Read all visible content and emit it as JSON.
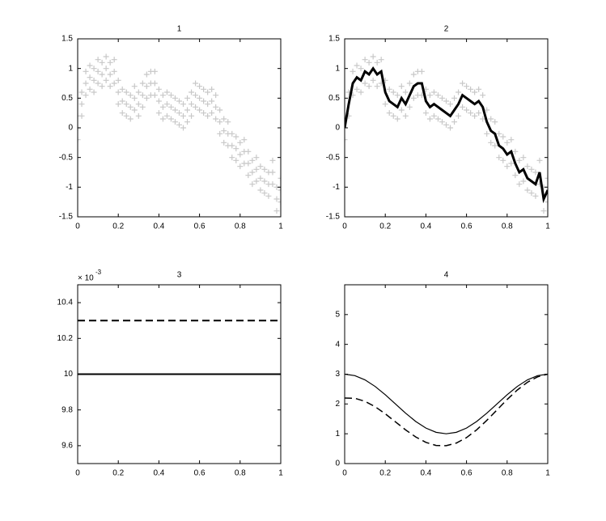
{
  "chart_data": [
    {
      "type": "scatter",
      "title": "1",
      "x": [
        0,
        0.02,
        0.04,
        0.06,
        0.08,
        0.1,
        0.12,
        0.14,
        0.16,
        0.18,
        0.2,
        0.22,
        0.24,
        0.26,
        0.28,
        0.3,
        0.32,
        0.34,
        0.36,
        0.38,
        0.4,
        0.42,
        0.44,
        0.46,
        0.48,
        0.5,
        0.52,
        0.54,
        0.56,
        0.58,
        0.6,
        0.62,
        0.64,
        0.66,
        0.68,
        0.7,
        0.72,
        0.74,
        0.76,
        0.78,
        0.8,
        0.82,
        0.84,
        0.86,
        0.88,
        0.9,
        0.92,
        0.94,
        0.96,
        0.98,
        1
      ],
      "series": [
        {
          "color": "#c8c8c8",
          "mode": "markers",
          "values": [
            0.2,
            0.6,
            0.95,
            1.05,
            1,
            1.15,
            1.1,
            1.2,
            1.1,
            1.15,
            0.8,
            0.65,
            0.6,
            0.55,
            0.7,
            0.6,
            0.75,
            0.9,
            0.95,
            0.95,
            0.65,
            0.55,
            0.6,
            0.55,
            0.5,
            0.45,
            0.4,
            0.5,
            0.6,
            0.75,
            0.7,
            0.65,
            0.6,
            0.65,
            0.55,
            0.3,
            0.15,
            0.1,
            -0.1,
            -0.15,
            -0.25,
            -0.2,
            -0.4,
            -0.55,
            -0.5,
            -0.65,
            -0.7,
            -0.75,
            -0.55,
            -1,
            -0.85
          ]
        },
        {
          "color": "#c8c8c8",
          "mode": "markers",
          "values": [
            0,
            0.4,
            0.75,
            0.85,
            0.8,
            0.95,
            0.9,
            1.0,
            0.9,
            0.95,
            0.6,
            0.45,
            0.4,
            0.35,
            0.5,
            0.4,
            0.55,
            0.7,
            0.75,
            0.75,
            0.45,
            0.35,
            0.4,
            0.35,
            0.3,
            0.25,
            0.2,
            0.3,
            0.4,
            0.55,
            0.5,
            0.45,
            0.4,
            0.45,
            0.35,
            0.1,
            -0.05,
            -0.1,
            -0.3,
            -0.35,
            -0.45,
            -0.4,
            -0.6,
            -0.75,
            -0.7,
            -0.85,
            -0.9,
            -0.95,
            -0.75,
            -1.2,
            -1.05
          ]
        },
        {
          "color": "#c8c8c8",
          "mode": "markers",
          "values": [
            -0.2,
            0.2,
            0.55,
            0.65,
            0.6,
            0.75,
            0.7,
            0.8,
            0.7,
            0.75,
            0.4,
            0.25,
            0.2,
            0.15,
            0.3,
            0.2,
            0.35,
            0.5,
            0.55,
            0.55,
            0.25,
            0.15,
            0.2,
            0.15,
            0.1,
            0.05,
            0,
            0.1,
            0.2,
            0.35,
            0.3,
            0.25,
            0.2,
            0.25,
            0.15,
            -0.1,
            -0.25,
            -0.3,
            -0.5,
            -0.55,
            -0.65,
            -0.6,
            -0.8,
            -0.95,
            -0.9,
            -1.05,
            -1.1,
            -1.15,
            -0.95,
            -1.4,
            -1.25
          ]
        }
      ],
      "xlim": [
        0,
        1
      ],
      "xticks": [
        0,
        0.2,
        0.4,
        0.6,
        0.8,
        1
      ],
      "ylim": [
        -1.5,
        1.5
      ],
      "yticks": [
        -1.5,
        -1,
        -0.5,
        0,
        0.5,
        1,
        1.5
      ]
    },
    {
      "type": "scatter",
      "title": "2",
      "x": [
        0,
        0.02,
        0.04,
        0.06,
        0.08,
        0.1,
        0.12,
        0.14,
        0.16,
        0.18,
        0.2,
        0.22,
        0.24,
        0.26,
        0.28,
        0.3,
        0.32,
        0.34,
        0.36,
        0.38,
        0.4,
        0.42,
        0.44,
        0.46,
        0.48,
        0.5,
        0.52,
        0.54,
        0.56,
        0.58,
        0.6,
        0.62,
        0.64,
        0.66,
        0.68,
        0.7,
        0.72,
        0.74,
        0.76,
        0.78,
        0.8,
        0.82,
        0.84,
        0.86,
        0.88,
        0.9,
        0.92,
        0.94,
        0.96,
        0.98,
        1
      ],
      "series": [
        {
          "color": "#c8c8c8",
          "mode": "markers",
          "values": [
            0.2,
            0.6,
            0.95,
            1.05,
            1,
            1.15,
            1.1,
            1.2,
            1.1,
            1.15,
            0.8,
            0.65,
            0.6,
            0.55,
            0.7,
            0.6,
            0.75,
            0.9,
            0.95,
            0.95,
            0.65,
            0.55,
            0.6,
            0.55,
            0.5,
            0.45,
            0.4,
            0.5,
            0.6,
            0.75,
            0.7,
            0.65,
            0.6,
            0.65,
            0.55,
            0.3,
            0.15,
            0.1,
            -0.1,
            -0.15,
            -0.25,
            -0.2,
            -0.4,
            -0.55,
            -0.5,
            -0.65,
            -0.7,
            -0.75,
            -0.55,
            -1,
            -0.85
          ]
        },
        {
          "color": "#c8c8c8",
          "mode": "markers",
          "values": [
            -0.2,
            0.2,
            0.55,
            0.65,
            0.6,
            0.75,
            0.7,
            0.8,
            0.7,
            0.75,
            0.4,
            0.25,
            0.2,
            0.15,
            0.3,
            0.2,
            0.35,
            0.5,
            0.55,
            0.55,
            0.25,
            0.15,
            0.2,
            0.15,
            0.1,
            0.05,
            0,
            0.1,
            0.2,
            0.35,
            0.3,
            0.25,
            0.2,
            0.25,
            0.15,
            -0.1,
            -0.25,
            -0.3,
            -0.5,
            -0.55,
            -0.65,
            -0.6,
            -0.8,
            -0.95,
            -0.9,
            -1.05,
            -1.1,
            -1.15,
            -0.95,
            -1.4,
            -1.25
          ]
        },
        {
          "color": "#000000",
          "mode": "line",
          "dash": false,
          "line_width": 3,
          "values": [
            0,
            0.4,
            0.75,
            0.85,
            0.8,
            0.95,
            0.9,
            1.0,
            0.9,
            0.95,
            0.6,
            0.45,
            0.4,
            0.35,
            0.5,
            0.4,
            0.55,
            0.7,
            0.75,
            0.75,
            0.45,
            0.35,
            0.4,
            0.35,
            0.3,
            0.25,
            0.2,
            0.3,
            0.4,
            0.55,
            0.5,
            0.45,
            0.4,
            0.45,
            0.35,
            0.1,
            -0.05,
            -0.1,
            -0.3,
            -0.35,
            -0.45,
            -0.4,
            -0.6,
            -0.75,
            -0.7,
            -0.85,
            -0.9,
            -0.95,
            -0.75,
            -1.2,
            -1.05
          ]
        }
      ],
      "xlim": [
        0,
        1
      ],
      "xticks": [
        0,
        0.2,
        0.4,
        0.6,
        0.8,
        1
      ],
      "ylim": [
        -1.5,
        1.5
      ],
      "yticks": [
        -1.5,
        -1,
        -0.5,
        0,
        0.5,
        1,
        1.5
      ]
    },
    {
      "type": "line",
      "title": "3",
      "y_exponent": {
        "base": "× 10",
        "power": "-3"
      },
      "x": [
        0,
        1
      ],
      "series": [
        {
          "color": "#000000",
          "mode": "line",
          "dash": true,
          "line_width": 2,
          "values": [
            0.0103,
            0.0103
          ]
        },
        {
          "color": "#000000",
          "mode": "line",
          "dash": false,
          "line_width": 2,
          "values": [
            0.01,
            0.01
          ]
        }
      ],
      "xlim": [
        0,
        1
      ],
      "xticks": [
        0,
        0.2,
        0.4,
        0.6,
        0.8,
        1
      ],
      "ylim": [
        0.0095,
        0.0105
      ],
      "yticks": [
        {
          "value": 0.0096,
          "label": "9.6"
        },
        {
          "value": 0.0098,
          "label": "9.8"
        },
        {
          "value": 0.01,
          "label": "10"
        },
        {
          "value": 0.0102,
          "label": "10.2"
        },
        {
          "value": 0.0104,
          "label": "10.4"
        }
      ]
    },
    {
      "type": "line",
      "title": "4",
      "x": [
        0,
        0.05,
        0.1,
        0.15,
        0.2,
        0.25,
        0.3,
        0.35,
        0.4,
        0.45,
        0.5,
        0.55,
        0.6,
        0.65,
        0.7,
        0.75,
        0.8,
        0.85,
        0.9,
        0.95,
        1
      ],
      "series": [
        {
          "color": "#000000",
          "mode": "line",
          "dash": false,
          "line_width": 1.2,
          "values": [
            3,
            2.951,
            2.809,
            2.588,
            2.309,
            2,
            1.691,
            1.412,
            1.191,
            1.049,
            1,
            1.049,
            1.191,
            1.412,
            1.691,
            2,
            2.309,
            2.588,
            2.809,
            2.951,
            3
          ]
        },
        {
          "color": "#000000",
          "mode": "line",
          "dash": true,
          "line_width": 1.5,
          "values": [
            2.2,
            2.191,
            2.089,
            1.908,
            1.669,
            1.4,
            1.131,
            0.892,
            0.711,
            0.609,
            0.6,
            0.689,
            0.871,
            1.132,
            1.451,
            1.8,
            2.149,
            2.468,
            2.729,
            2.911,
            3
          ]
        }
      ],
      "xlim": [
        0,
        1
      ],
      "xticks": [
        0,
        0.2,
        0.4,
        0.6,
        0.8,
        1
      ],
      "ylim": [
        0,
        6
      ],
      "yticks": [
        0,
        1,
        2,
        3,
        4,
        5
      ]
    }
  ]
}
